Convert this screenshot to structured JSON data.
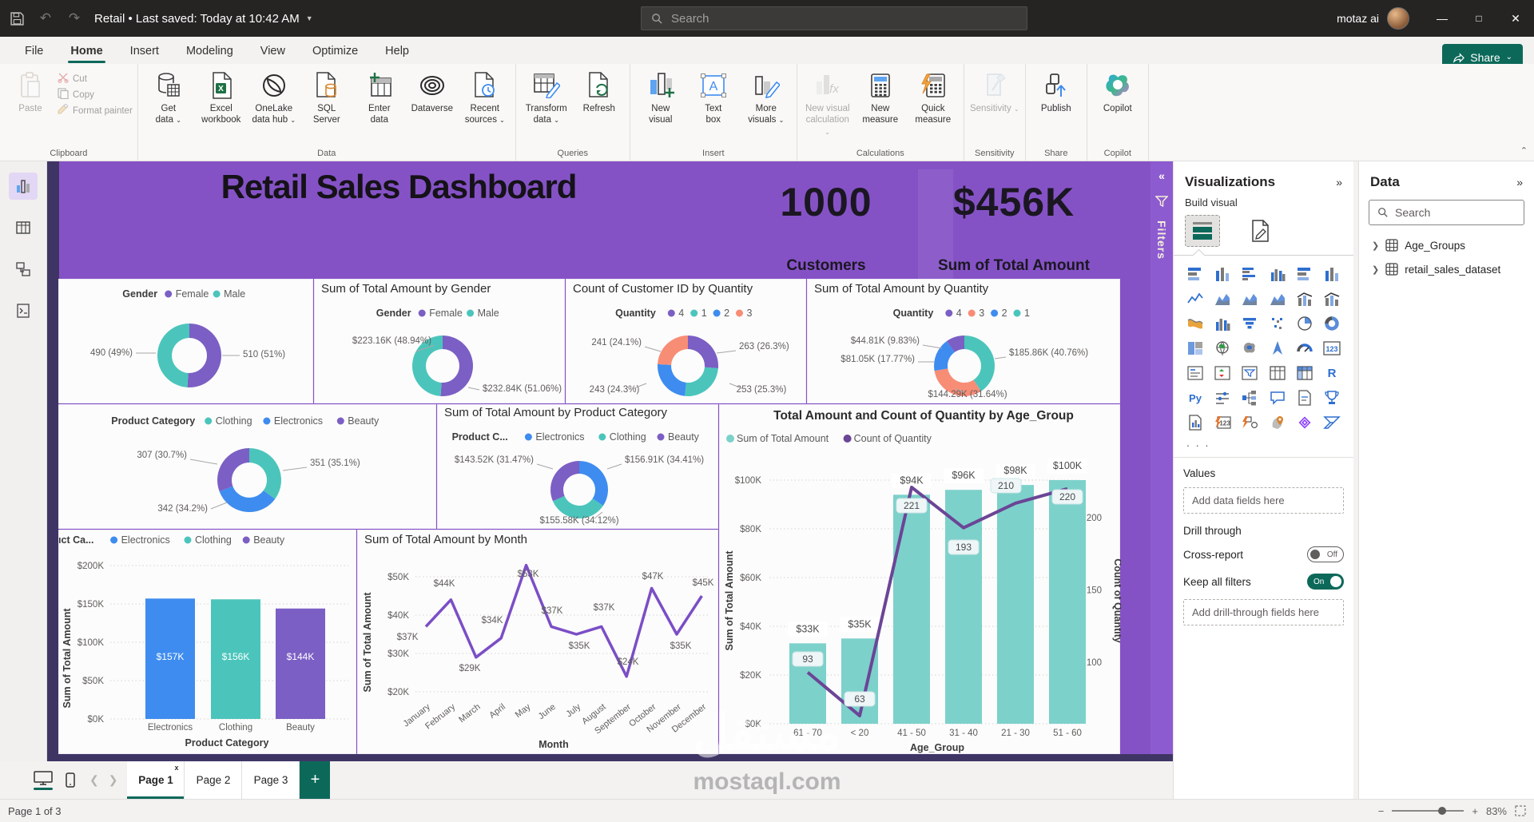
{
  "titlebar": {
    "doc_title": "Retail  •  Last saved: Today at 10:42 AM",
    "search_placeholder": "Search",
    "user_name": "motaz ai",
    "window_buttons": [
      "minimize",
      "maximize",
      "close"
    ]
  },
  "ribbon": {
    "tabs": [
      "File",
      "Home",
      "Insert",
      "Modeling",
      "View",
      "Optimize",
      "Help"
    ],
    "active_tab": "Home",
    "share_label": "Share",
    "groups": [
      {
        "label": "Clipboard",
        "clipboard": true,
        "buttons": [
          {
            "label": "Paste",
            "icon": "clipboard-icon",
            "disabled": true
          }
        ],
        "small": [
          {
            "label": "Cut",
            "icon": "scissors-icon"
          },
          {
            "label": "Copy",
            "icon": "copy-icon"
          },
          {
            "label": "Format painter",
            "icon": "brush-icon"
          }
        ]
      },
      {
        "label": "Data",
        "buttons": [
          {
            "label": "Get\ndata",
            "icon": "get-data-icon",
            "caret": true
          },
          {
            "label": "Excel\nworkbook",
            "icon": "excel-icon"
          },
          {
            "label": "OneLake\ndata hub",
            "icon": "onelake-icon",
            "caret": true
          },
          {
            "label": "SQL\nServer",
            "icon": "sql-icon"
          },
          {
            "label": "Enter\ndata",
            "icon": "enter-data-icon"
          },
          {
            "label": "Dataverse",
            "icon": "dataverse-icon"
          },
          {
            "label": "Recent\nsources",
            "icon": "recent-icon",
            "caret": true
          }
        ]
      },
      {
        "label": "Queries",
        "buttons": [
          {
            "label": "Transform\ndata",
            "icon": "transform-icon",
            "caret": true
          },
          {
            "label": "Refresh",
            "icon": "refresh-icon"
          }
        ]
      },
      {
        "label": "Insert",
        "buttons": [
          {
            "label": "New\nvisual",
            "icon": "new-visual-icon"
          },
          {
            "label": "Text\nbox",
            "icon": "textbox-icon"
          },
          {
            "label": "More\nvisuals",
            "icon": "more-visuals-icon",
            "caret": true
          }
        ]
      },
      {
        "label": "Calculations",
        "buttons": [
          {
            "label": "New visual\ncalculation",
            "icon": "fx-icon",
            "caret": true,
            "disabled": true
          },
          {
            "label": "New\nmeasure",
            "icon": "calculator-icon"
          },
          {
            "label": "Quick\nmeasure",
            "icon": "quick-measure-icon"
          }
        ]
      },
      {
        "label": "Sensitivity",
        "buttons": [
          {
            "label": "Sensitivity",
            "icon": "sensitivity-icon",
            "caret": true,
            "disabled": true
          }
        ]
      },
      {
        "label": "Share",
        "buttons": [
          {
            "label": "Publish",
            "icon": "publish-icon"
          }
        ]
      },
      {
        "label": "Copilot",
        "buttons": [
          {
            "label": "Copilot",
            "icon": "copilot-icon"
          }
        ]
      }
    ]
  },
  "left_rail": [
    {
      "name": "report-view-icon",
      "active": true
    },
    {
      "name": "table-view-icon",
      "active": false
    },
    {
      "name": "model-view-icon",
      "active": false
    },
    {
      "name": "dax-query-view-icon",
      "active": false
    }
  ],
  "dashboard": {
    "title": "Retail Sales Dashboard",
    "kpis": [
      {
        "value": "1000",
        "label": "Customers"
      },
      {
        "value": "$456K",
        "label": "Sum of Total Amount"
      }
    ],
    "filters_label": "Filters",
    "filters_collapse": "«"
  },
  "colors": {
    "purple": "#7B5FC4",
    "teal": "#4BC5BB",
    "blue": "#3E8CEF",
    "salmon": "#F88D76",
    "combo_bar": "#7DD1CB",
    "combo_line": "#6B4596",
    "month_line": "#7B4EC6",
    "canvas": "#8552c6",
    "accent_green": "#0c695a"
  },
  "chart_data": [
    {
      "id": "gender-donut",
      "type": "donut",
      "title": "",
      "legend_title": "Gender",
      "legend": [
        {
          "label": "Female",
          "color": "#7B5FC4"
        },
        {
          "label": "Male",
          "color": "#4BC5BB"
        }
      ],
      "slices": [
        {
          "name": "Female",
          "pct": 51,
          "color": "#7B5FC4"
        },
        {
          "name": "Male",
          "pct": 49,
          "color": "#4BC5BB"
        }
      ],
      "callouts": [
        "490 (49%)",
        "510 (51%)"
      ]
    },
    {
      "id": "amount-by-gender-donut",
      "type": "donut",
      "title": "Sum of Total Amount by Gender",
      "legend_title": "Gender",
      "legend": [
        {
          "label": "Female",
          "color": "#7B5FC4"
        },
        {
          "label": "Male",
          "color": "#4BC5BB"
        }
      ],
      "slices": [
        {
          "name": "Female",
          "pct": 51.06,
          "color": "#7B5FC4"
        },
        {
          "name": "Male",
          "pct": 48.94,
          "color": "#4BC5BB"
        }
      ],
      "callouts": [
        "$223.16K (48.94%)",
        "$232.84K (51.06%)"
      ]
    },
    {
      "id": "customer-by-quantity-donut",
      "type": "donut",
      "title": "Count of Customer ID by Quantity",
      "legend_title": "Quantity",
      "legend": [
        {
          "label": "4",
          "color": "#7B5FC4"
        },
        {
          "label": "1",
          "color": "#4BC5BB"
        },
        {
          "label": "2",
          "color": "#3E8CEF"
        },
        {
          "label": "3",
          "color": "#F88D76"
        }
      ],
      "slices": [
        {
          "name": "4",
          "pct": 26.3,
          "color": "#7B5FC4"
        },
        {
          "name": "1",
          "pct": 25.3,
          "color": "#4BC5BB"
        },
        {
          "name": "2",
          "pct": 24.3,
          "color": "#3E8CEF"
        },
        {
          "name": "3",
          "pct": 24.1,
          "color": "#F88D76"
        }
      ],
      "callouts": [
        "241 (24.1%)",
        "263 (26.3%)",
        "243 (24.3%)",
        "253 (25.3%)"
      ]
    },
    {
      "id": "amount-by-quantity-donut",
      "type": "donut",
      "title": "Sum of Total Amount by Quantity",
      "legend_title": "Quantity",
      "legend": [
        {
          "label": "4",
          "color": "#7B5FC4"
        },
        {
          "label": "3",
          "color": "#F88D76"
        },
        {
          "label": "2",
          "color": "#3E8CEF"
        },
        {
          "label": "1",
          "color": "#4BC5BB"
        }
      ],
      "slices": [
        {
          "name": "1",
          "pct": 40.76,
          "color": "#4BC5BB"
        },
        {
          "name": "3",
          "pct": 31.64,
          "color": "#F88D76"
        },
        {
          "name": "2",
          "pct": 17.77,
          "color": "#3E8CEF"
        },
        {
          "name": "4",
          "pct": 9.83,
          "color": "#7B5FC4"
        }
      ],
      "callouts": [
        "$44.81K (9.83%)",
        "$81.05K (17.77%)",
        "$185.86K (40.76%)",
        "$144.29K (31.64%)"
      ]
    },
    {
      "id": "product-category-donut",
      "type": "donut",
      "title": "",
      "legend_title": "Product Category",
      "legend": [
        {
          "label": "Clothing",
          "color": "#4BC5BB"
        },
        {
          "label": "Electronics",
          "color": "#3E8CEF"
        },
        {
          "label": "Beauty",
          "color": "#7B5FC4"
        }
      ],
      "slices": [
        {
          "name": "Clothing",
          "pct": 35.1,
          "color": "#4BC5BB"
        },
        {
          "name": "Electronics",
          "pct": 34.2,
          "color": "#3E8CEF"
        },
        {
          "name": "Beauty",
          "pct": 30.7,
          "color": "#7B5FC4"
        }
      ],
      "callouts": [
        "307 (30.7%)",
        "351 (35.1%)",
        "342 (34.2%)"
      ]
    },
    {
      "id": "amount-by-category-donut",
      "type": "donut",
      "title": "Sum of Total Amount by Product Category",
      "legend_title": "Product C...",
      "legend": [
        {
          "label": "Electronics",
          "color": "#3E8CEF"
        },
        {
          "label": "Clothing",
          "color": "#4BC5BB"
        },
        {
          "label": "Beauty",
          "color": "#7B5FC4"
        }
      ],
      "slices": [
        {
          "name": "Electronics",
          "pct": 34.41,
          "color": "#3E8CEF"
        },
        {
          "name": "Clothing",
          "pct": 34.12,
          "color": "#4BC5BB"
        },
        {
          "name": "Beauty",
          "pct": 31.47,
          "color": "#7B5FC4"
        }
      ],
      "callouts": [
        "$143.52K (31.47%)",
        "$156.91K (34.41%)",
        "$155.58K (34.12%)"
      ]
    },
    {
      "id": "amount-by-category-bar",
      "type": "bar",
      "legend_title": "Product Ca...",
      "legend": [
        {
          "label": "Electronics",
          "color": "#3E8CEF"
        },
        {
          "label": "Clothing",
          "color": "#4BC5BB"
        },
        {
          "label": "Beauty",
          "color": "#7B5FC4"
        }
      ],
      "categories": [
        "Electronics",
        "Clothing",
        "Beauty"
      ],
      "values": [
        157,
        156,
        144
      ],
      "value_labels": [
        "$157K",
        "$156K",
        "$144K"
      ],
      "bar_colors": [
        "#3E8CEF",
        "#4BC5BB",
        "#7B5FC4"
      ],
      "yticks": [
        "$0K",
        "$50K",
        "$100K",
        "$150K",
        "$200K"
      ],
      "ylim": [
        0,
        200
      ],
      "ylabel": "Sum of Total Amount",
      "xlabel": "Product Category"
    },
    {
      "id": "amount-by-month-line",
      "type": "line",
      "title": "Sum of Total Amount by Month",
      "x": [
        "January",
        "February",
        "March",
        "April",
        "May",
        "June",
        "July",
        "August",
        "September",
        "October",
        "November",
        "December"
      ],
      "values": [
        37,
        44,
        29,
        34,
        53,
        37,
        35,
        37,
        24,
        47,
        35,
        45
      ],
      "point_labels": [
        "$37K",
        "$44K",
        "$29K",
        "$34K",
        "$53K",
        "$37K",
        "$35K",
        "$37K",
        "$24K",
        "$47K",
        "$35K",
        "$45K"
      ],
      "yticks": [
        20,
        30,
        40,
        50
      ],
      "ytick_labels": [
        "$20K",
        "$30K",
        "$40K",
        "$50K"
      ],
      "line_color": "#7B4EC6",
      "ylabel": "Sum of Total Amount",
      "xlabel": "Month"
    },
    {
      "id": "amount-quantity-by-age-combo",
      "type": "combo",
      "title": "Total Amount and Count of Quantity by Age_Group",
      "categories": [
        "61 - 70",
        "< 20",
        "41 - 50",
        "31 - 40",
        "21 - 30",
        "51 - 60"
      ],
      "series": [
        {
          "name": "Sum of Total Amount",
          "type": "bar",
          "values": [
            33,
            35,
            94,
            96,
            98,
            100
          ],
          "labels": [
            "$33K",
            "$35K",
            "$94K",
            "$96K",
            "$98K",
            "$100K"
          ],
          "color": "#7DD1CB"
        },
        {
          "name": "Count of Quantity",
          "type": "line",
          "values": [
            93,
            63,
            221,
            193,
            210,
            220
          ],
          "color": "#6B4596"
        }
      ],
      "left_yticks": [
        "$0K",
        "$20K",
        "$40K",
        "$60K",
        "$80K",
        "$100K"
      ],
      "left_ylim": [
        0,
        100
      ],
      "right_yticks": [
        100,
        150,
        200
      ],
      "ylabel_left": "Sum of Total Amount",
      "ylabel_right": "Count of Quantity",
      "xlabel": "Age_Group"
    }
  ],
  "visualizations_panel": {
    "header": "Visualizations",
    "collapse": "»",
    "build_visual": "Build visual",
    "modes": [
      {
        "name": "build-visual-mode-icon",
        "selected": true
      },
      {
        "name": "format-visual-mode-icon",
        "selected": false
      }
    ],
    "icons": [
      {
        "n": "stacked-bar-chart-icon",
        "k": "hbar"
      },
      {
        "n": "stacked-column-chart-icon",
        "k": "vbar"
      },
      {
        "n": "clustered-bar-chart-icon",
        "k": "hbar2"
      },
      {
        "n": "clustered-column-chart-icon",
        "k": "vbar2"
      },
      {
        "n": "100-stacked-bar-chart-icon",
        "k": "hbar"
      },
      {
        "n": "100-stacked-column-chart-icon",
        "k": "vbar"
      },
      {
        "n": "line-chart-icon",
        "k": "line"
      },
      {
        "n": "area-chart-icon",
        "k": "area"
      },
      {
        "n": "stacked-area-chart-icon",
        "k": "area"
      },
      {
        "n": "ribbon-chart-icon",
        "k": "area"
      },
      {
        "n": "line-stacked-column-chart-icon",
        "k": "combo"
      },
      {
        "n": "line-clustered-column-chart-icon",
        "k": "combo"
      },
      {
        "n": "waterfall-chart-icon",
        "k": "wave"
      },
      {
        "n": "funnel-chart-icon",
        "k": "vbar2"
      },
      {
        "n": "funnel-icon",
        "k": "funnel"
      },
      {
        "n": "scatter-chart-icon",
        "k": "dots"
      },
      {
        "n": "pie-chart-icon",
        "k": "pie"
      },
      {
        "n": "donut-chart-icon",
        "k": "donut"
      },
      {
        "n": "treemap-icon",
        "k": "treemap"
      },
      {
        "n": "map-icon",
        "k": "globe"
      },
      {
        "n": "filled-map-icon",
        "k": "blob"
      },
      {
        "n": "azure-map-icon",
        "k": "arrow"
      },
      {
        "n": "gauge-icon",
        "k": "gauge"
      },
      {
        "n": "card-icon",
        "k": "t123"
      },
      {
        "n": "multi-row-card-icon",
        "k": "lines"
      },
      {
        "n": "kpi-icon",
        "k": "kpi"
      },
      {
        "n": "slicer-icon",
        "k": "slicer"
      },
      {
        "n": "table-icon",
        "k": "table"
      },
      {
        "n": "matrix-icon",
        "k": "matrix"
      },
      {
        "n": "r-script-icon",
        "k": "tR"
      },
      {
        "n": "python-icon",
        "k": "tPy"
      },
      {
        "n": "numeric-range-slicer-icon",
        "k": "params"
      },
      {
        "n": "decomposition-tree-icon",
        "k": "tree"
      },
      {
        "n": "qna-icon",
        "k": "bubble"
      },
      {
        "n": "smart-narrative-icon",
        "k": "doc"
      },
      {
        "n": "metrics-icon",
        "k": "trophy"
      },
      {
        "n": "paginated-report-icon",
        "k": "docbar"
      },
      {
        "n": "calculation-123-icon",
        "k": "zap123"
      },
      {
        "n": "calculation-group-icon",
        "k": "zapshape"
      },
      {
        "n": "arcgis-map-icon",
        "k": "pin"
      },
      {
        "n": "power-apps-icon",
        "k": "diamond"
      },
      {
        "n": "power-automate-icon",
        "k": "flow"
      }
    ],
    "more": ". . .",
    "values_label": "Values",
    "add_data_placeholder": "Add data fields here",
    "drill_through_label": "Drill through",
    "cross_report_label": "Cross-report",
    "cross_report_state": "Off",
    "keep_filters_label": "Keep all filters",
    "keep_filters_state": "On",
    "add_drill_placeholder": "Add drill-through fields here"
  },
  "data_panel": {
    "header": "Data",
    "collapse": "»",
    "ribbon_collapse": "⌃",
    "search_placeholder": "Search",
    "items": [
      "Age_Groups",
      "retail_sales_dataset"
    ]
  },
  "page_bar": {
    "tabs": [
      {
        "label": "Page 1",
        "active": true,
        "closable": true
      },
      {
        "label": "Page 2"
      },
      {
        "label": "Page 3"
      }
    ],
    "add_label": "+",
    "views": [
      "desktop-view-icon",
      "mobile-view-icon"
    ]
  },
  "status_bar": {
    "left": "Page 1 of 3",
    "zoom": "83%"
  },
  "watermark": {
    "arabic": "مستقل",
    "domain": "mostaql.com"
  }
}
